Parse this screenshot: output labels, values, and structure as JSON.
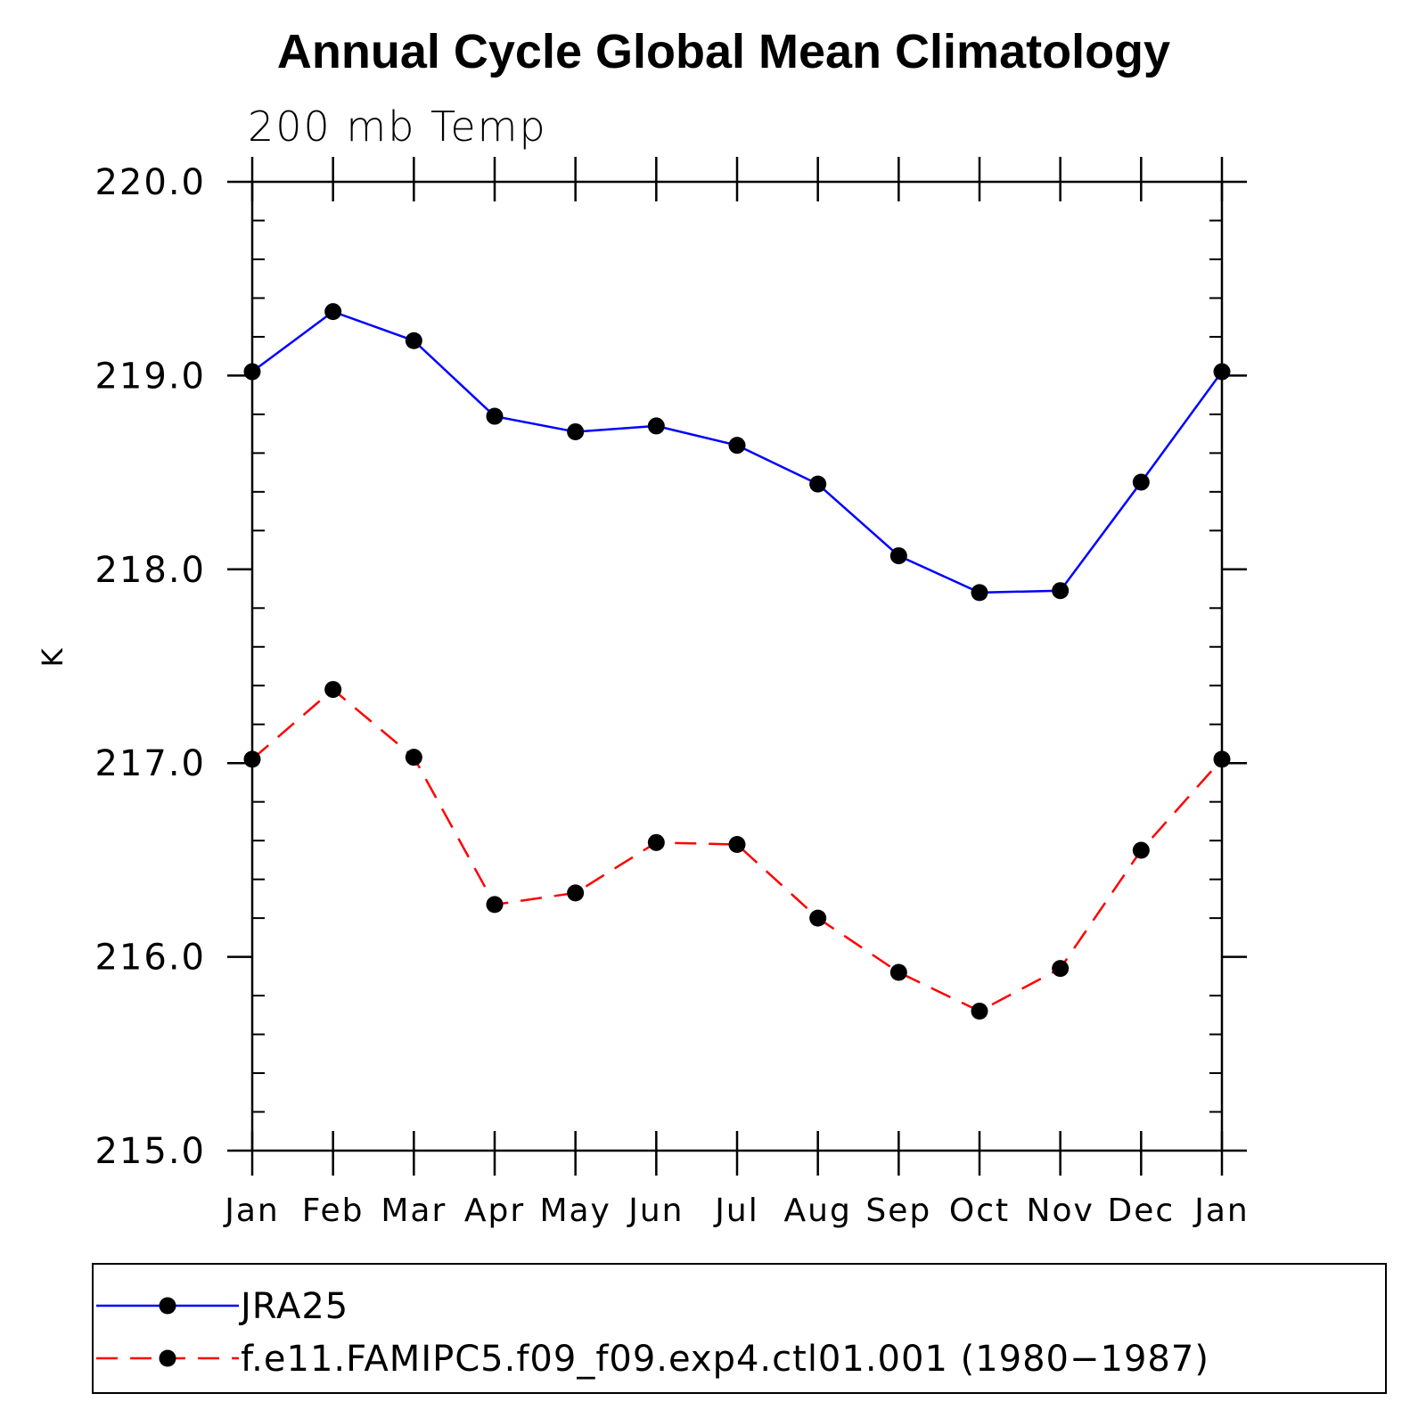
{
  "chart_data": {
    "type": "line",
    "title": "Annual Cycle Global Mean Climatology",
    "subtitle": "200 mb Temp",
    "xlabel": "",
    "ylabel": "K",
    "categories": [
      "Jan",
      "Feb",
      "Mar",
      "Apr",
      "May",
      "Jun",
      "Jul",
      "Aug",
      "Sep",
      "Oct",
      "Nov",
      "Dec",
      "Jan"
    ],
    "ylim": [
      215.0,
      220.0
    ],
    "yticks": [
      "215.0",
      "216.0",
      "217.0",
      "218.0",
      "219.0",
      "220.0"
    ],
    "legend_position": "bottom",
    "series": [
      {
        "name": "JRA25",
        "color": "#0000ff",
        "line_style": "solid",
        "marker": "circle",
        "values": [
          219.02,
          219.33,
          219.18,
          218.79,
          218.71,
          218.74,
          218.64,
          218.44,
          218.07,
          217.88,
          217.89,
          218.45,
          219.02
        ]
      },
      {
        "name": "f.e11.FAMIPC5.f09_f09.exp4.ctl01.001 (1980−1987)",
        "color": "#ff0000",
        "line_style": "dashed",
        "marker": "circle",
        "values": [
          217.02,
          217.38,
          217.03,
          216.27,
          216.33,
          216.59,
          216.58,
          216.2,
          215.92,
          215.72,
          215.94,
          216.55,
          217.02
        ]
      }
    ]
  }
}
